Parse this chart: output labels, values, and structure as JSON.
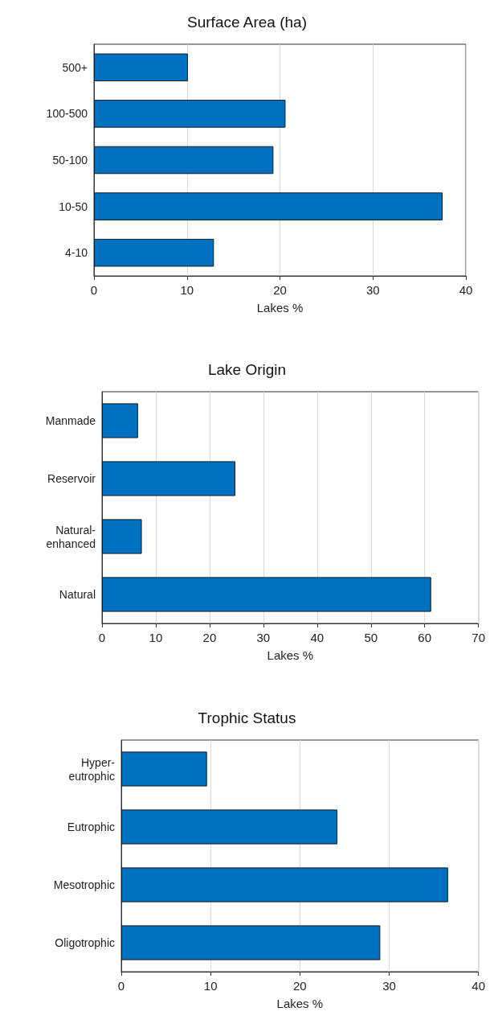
{
  "chart_data": [
    {
      "type": "bar",
      "orientation": "horizontal",
      "title": "Surface Area (ha)",
      "xlabel": "Lakes %",
      "categories": [
        "500+",
        "100-500",
        "50-100",
        "10-50",
        "4-10"
      ],
      "values": [
        10.1,
        20.6,
        19.3,
        37.5,
        12.9
      ],
      "color": "#0070c0",
      "xlim": [
        0,
        40
      ],
      "xticks": [
        0,
        10,
        20,
        30,
        40
      ],
      "grid": "x"
    },
    {
      "type": "bar",
      "orientation": "horizontal",
      "title": "Lake Origin",
      "xlabel": "Lakes %",
      "categories": [
        "Manmade",
        "Reservoir",
        "Natural-\nenhanced",
        "Natural"
      ],
      "values": [
        6.7,
        24.8,
        7.4,
        61.2
      ],
      "color": "#0070c0",
      "xlim": [
        0,
        70
      ],
      "xticks": [
        0,
        10,
        20,
        30,
        40,
        50,
        60,
        70
      ],
      "grid": "x"
    },
    {
      "type": "bar",
      "orientation": "horizontal",
      "title": "Trophic Status",
      "xlabel": "Lakes %",
      "categories": [
        "Hyper-\neutrophic",
        "Eutrophic",
        "Mesotrophic",
        "Oligotrophic"
      ],
      "values": [
        9.6,
        24.2,
        36.6,
        29.0
      ],
      "color": "#0070c0",
      "xlim": [
        0,
        40
      ],
      "xticks": [
        0,
        10,
        20,
        30,
        40
      ],
      "grid": "x"
    }
  ]
}
